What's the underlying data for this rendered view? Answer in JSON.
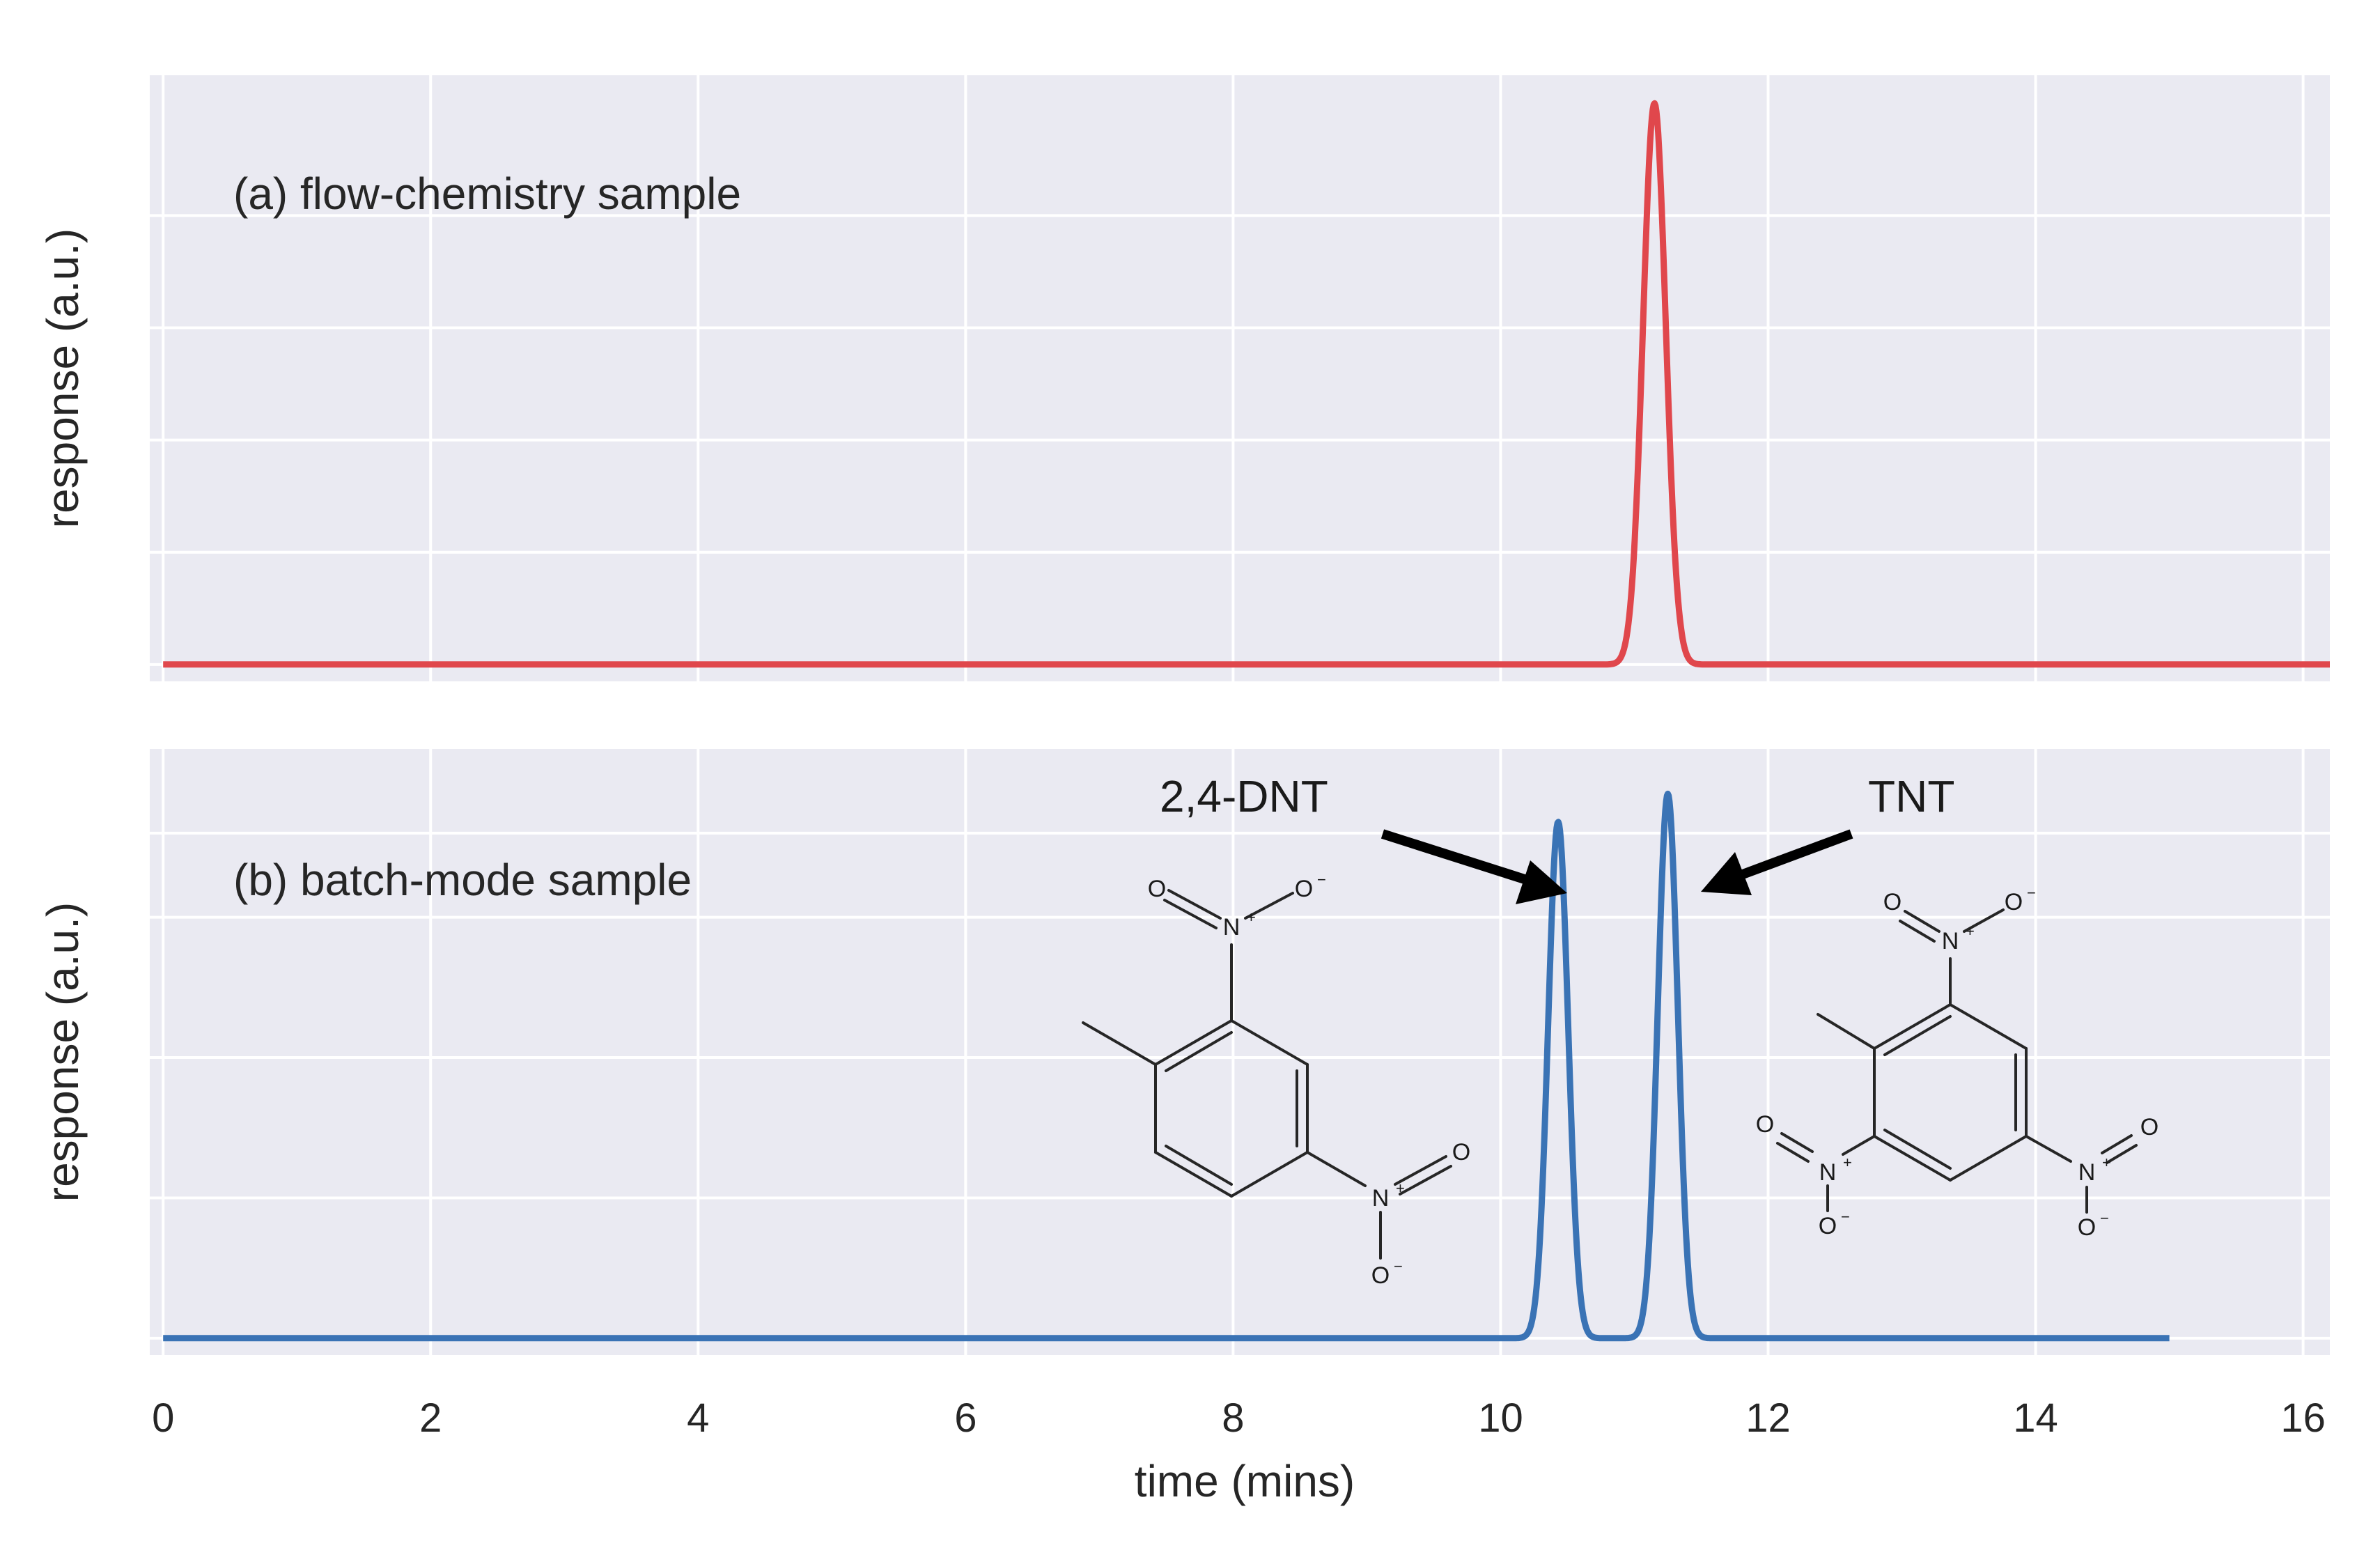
{
  "chart_data": [
    {
      "type": "line",
      "panel_label": "(a) flow-chemistry sample",
      "xlabel": "",
      "ylabel": "response (a.u.)",
      "xlim": [
        -0.1,
        16.2
      ],
      "ylim": [
        -0.03,
        1.05
      ],
      "x_ticks": [
        0,
        2,
        4,
        6,
        8,
        10,
        12,
        14,
        16
      ],
      "y_gridlines": [
        0,
        0.2,
        0.4,
        0.6,
        0.8
      ],
      "y_tick_labels_visible": false,
      "grid": true,
      "line_color": "#e0474c",
      "series": [
        {
          "x_range": [
            0,
            16.2
          ],
          "baseline": 0,
          "peaks": [
            {
              "x": 11.15,
              "y": 1.0,
              "sigma": 0.085
            }
          ]
        }
      ]
    },
    {
      "type": "line",
      "panel_label": "(b) batch-mode sample",
      "xlabel": "time (mins)",
      "ylabel": "response (a.u.)",
      "xlim": [
        -0.1,
        16.2
      ],
      "ylim": [
        -0.03,
        1.05
      ],
      "x_ticks": [
        0,
        2,
        4,
        6,
        8,
        10,
        12,
        14,
        16
      ],
      "x_tick_labels": [
        "0",
        "2",
        "4",
        "6",
        "8",
        "10",
        "12",
        "14",
        "16"
      ],
      "y_gridlines": [
        0,
        0.25,
        0.5,
        0.75,
        0.9
      ],
      "y_tick_labels_visible": false,
      "grid": true,
      "line_color": "#3a73b5",
      "series": [
        {
          "x_range": [
            0,
            15.0
          ],
          "baseline": 0,
          "peaks": [
            {
              "x": 10.43,
              "y": 0.92,
              "sigma": 0.075
            },
            {
              "x": 11.25,
              "y": 0.97,
              "sigma": 0.075
            }
          ]
        }
      ],
      "annotations": [
        {
          "text": "2,4-DNT",
          "arrow_target_x": 10.35,
          "arrow_target_y": 0.82
        },
        {
          "text": "TNT",
          "arrow_target_x": 11.35,
          "arrow_target_y": 0.82
        }
      ],
      "structure_labels": {
        "oxygen": "O",
        "oxygen_anion": "O",
        "nitrogen": "N",
        "plus": "+",
        "minus": "−"
      }
    }
  ],
  "colors": {
    "panel_background": "#eaeaf2",
    "grid": "#ffffff",
    "text": "#262626"
  }
}
